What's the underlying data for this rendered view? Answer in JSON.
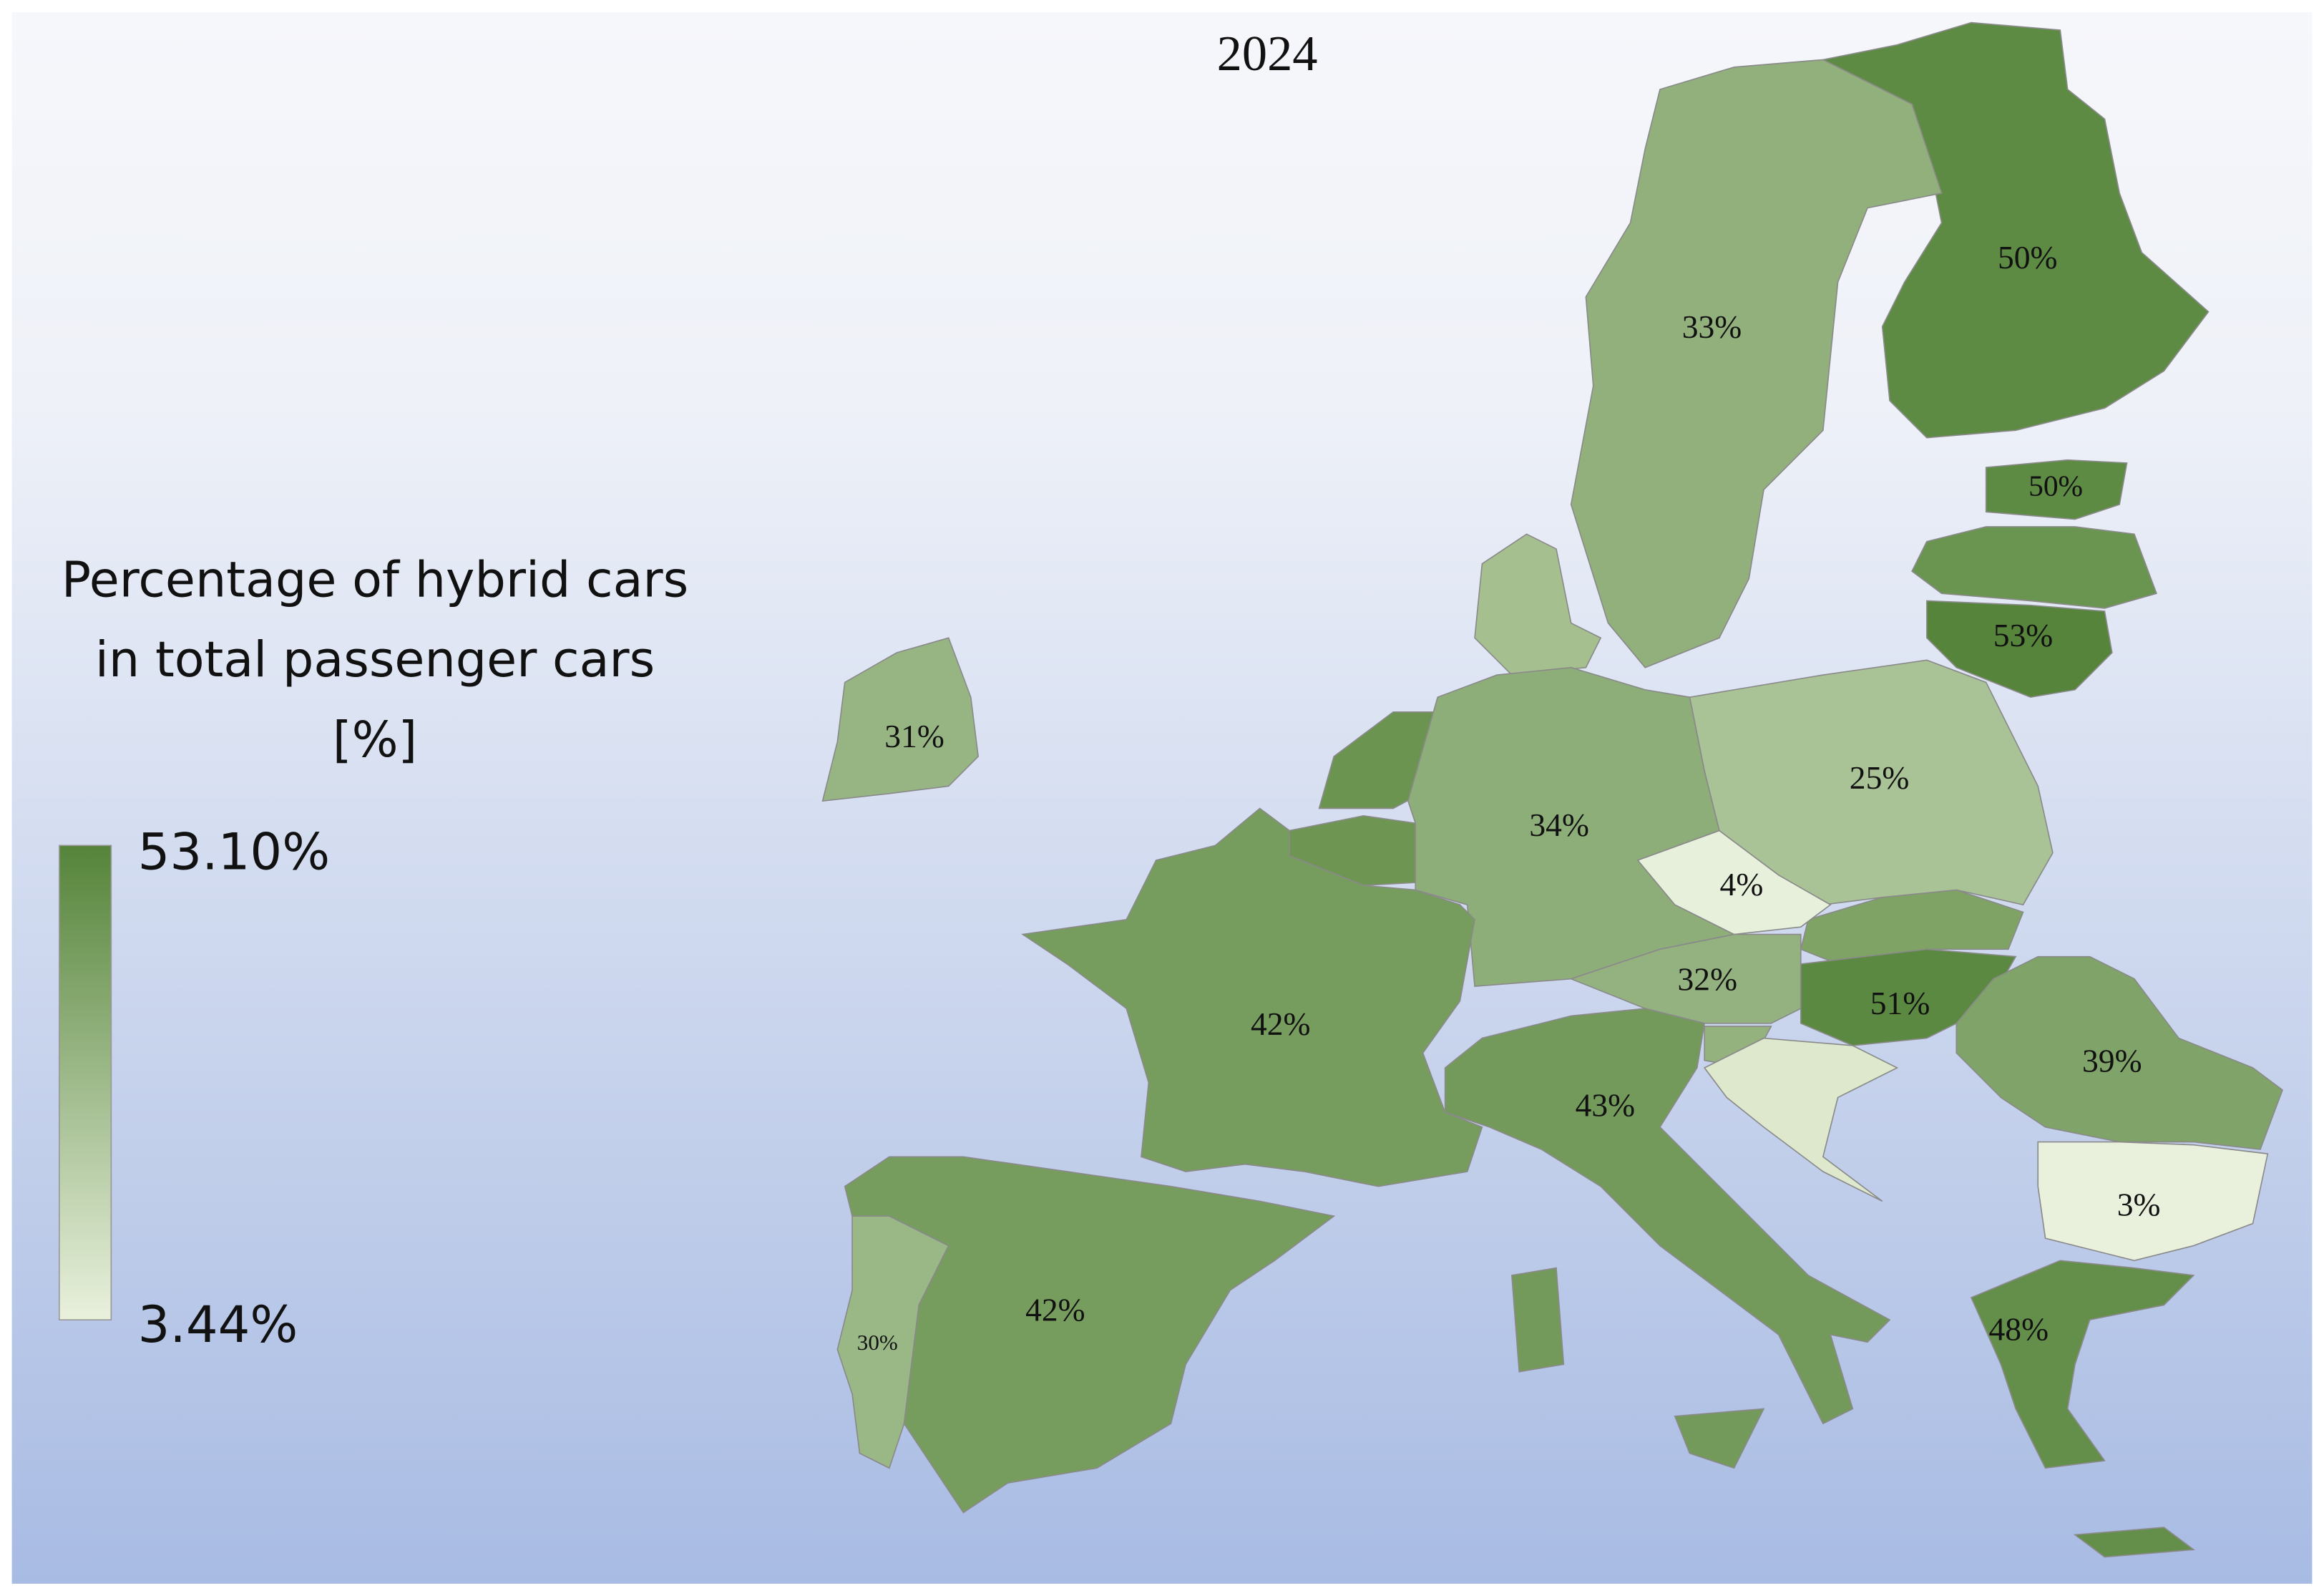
{
  "map": {
    "title": "2024",
    "legend": {
      "title": [
        "Percentage of hybrid cars",
        "in total passenger cars",
        "[%]"
      ],
      "max": {
        "value": 53.1,
        "label": "53.10%"
      },
      "min": {
        "value": 3.44,
        "label": "3.44%"
      },
      "colors": {
        "low": "#e9f1dd",
        "high": "#55843a"
      }
    },
    "regions": {
      "values": [
        50,
        33,
        50,
        53,
        31,
        25,
        34,
        4,
        32,
        51,
        42,
        43,
        39,
        3,
        30,
        42,
        48
      ],
      "value_labels": [
        "50%",
        "33%",
        "50%",
        "53%",
        "31%",
        "25%",
        "34%",
        "4%",
        "32%",
        "51%",
        "42%",
        "43%",
        "39%",
        "3%",
        "30%",
        "42%",
        "48%"
      ]
    }
  }
}
